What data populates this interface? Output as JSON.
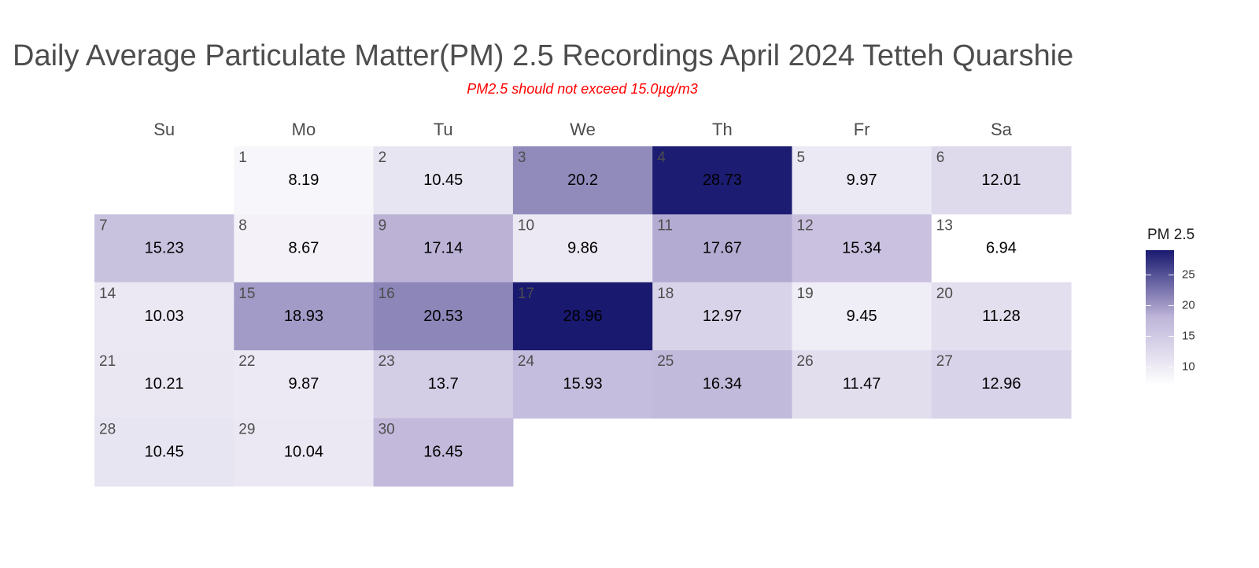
{
  "title": "Daily Average Particulate Matter(PM) 2.5 Recordings April 2024 Tetteh Quarshie",
  "subtitle": "PM2.5 should not exceed 15.0µg/m3",
  "chart_data": {
    "type": "heatmap",
    "title": "Daily Average Particulate Matter(PM) 2.5 Recordings April 2024 Tetteh Quarshie",
    "subtitle": "PM2.5 should not exceed 15.0µg/m3",
    "weekdays": [
      "Su",
      "Mo",
      "Tu",
      "We",
      "Th",
      "Fr",
      "Sa"
    ],
    "first_weekday_index": 1,
    "days": [
      1,
      2,
      3,
      4,
      5,
      6,
      7,
      8,
      9,
      10,
      11,
      12,
      13,
      14,
      15,
      16,
      17,
      18,
      19,
      20,
      21,
      22,
      23,
      24,
      25,
      26,
      27,
      28,
      29,
      30
    ],
    "values": [
      8.19,
      10.45,
      20.2,
      28.73,
      9.97,
      12.01,
      15.23,
      8.67,
      17.14,
      9.86,
      17.67,
      15.34,
      6.94,
      10.03,
      18.93,
      20.53,
      28.96,
      12.97,
      9.45,
      11.28,
      10.21,
      9.87,
      13.7,
      15.93,
      16.34,
      11.47,
      12.96,
      10.45,
      10.04,
      16.45
    ],
    "legend": {
      "title": "PM 2.5",
      "ticks": [
        10,
        15,
        20,
        25
      ],
      "range": [
        6.94,
        28.96
      ],
      "placement": "right"
    },
    "colors": {
      "low": "#ffffff",
      "high": "#191970",
      "mid": "#bfb6d9"
    }
  }
}
